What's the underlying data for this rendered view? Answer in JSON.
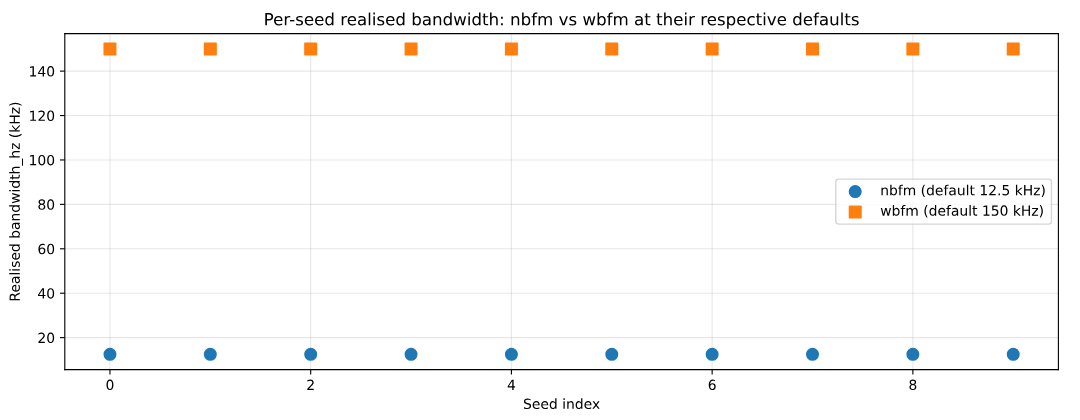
{
  "chart_data": {
    "type": "scatter",
    "title": "Per-seed realised bandwidth: nbfm vs wbfm at their respective defaults",
    "xlabel": "Seed index",
    "ylabel": "Realised bandwidth_hz (kHz)",
    "x": [
      0,
      1,
      2,
      3,
      4,
      5,
      6,
      7,
      8,
      9
    ],
    "series": [
      {
        "name": "nbfm (default 12.5 kHz)",
        "color": "#1f77b4",
        "marker": "circle",
        "values": [
          12.5,
          12.5,
          12.5,
          12.5,
          12.5,
          12.5,
          12.5,
          12.5,
          12.5,
          12.5
        ]
      },
      {
        "name": "wbfm (default 150 kHz)",
        "color": "#ff7f0e",
        "marker": "square",
        "values": [
          150,
          150,
          150,
          150,
          150,
          150,
          150,
          150,
          150,
          150
        ]
      }
    ],
    "xlim": [
      -0.45,
      9.45
    ],
    "xticks": [
      0,
      2,
      4,
      6,
      8
    ],
    "ylim": [
      5.6,
      156.9
    ],
    "yticks": [
      20,
      40,
      60,
      80,
      100,
      120,
      140
    ],
    "grid": true,
    "legend": "right"
  }
}
